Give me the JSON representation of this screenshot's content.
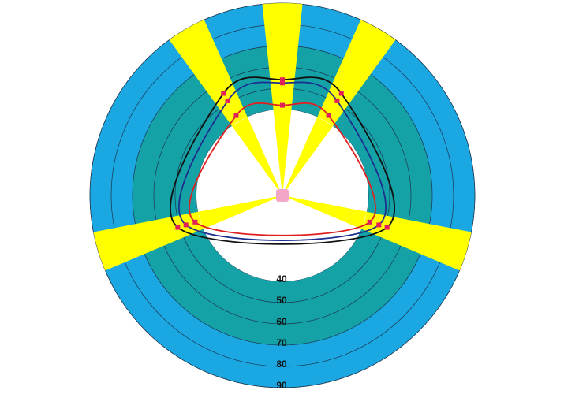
{
  "chart_data": {
    "type": "polar",
    "theta": [
      -30,
      0,
      30,
      107,
      253
    ],
    "rlim": [
      40,
      90
    ],
    "rticks": [
      40,
      50,
      60,
      70,
      80,
      90
    ],
    "series": [
      {
        "color": "#111111",
        "values": [
          55,
          54,
          55,
          51,
          51
        ]
      },
      {
        "color": "#1c2f8f",
        "values": [
          51,
          52.5,
          51,
          47,
          47
        ]
      },
      {
        "color": "#e02020",
        "values": [
          43,
          42,
          43,
          42.5,
          42.5
        ]
      }
    ],
    "marker_color": "#e0205a",
    "spoke_color": "#ffff00",
    "grid": true
  }
}
